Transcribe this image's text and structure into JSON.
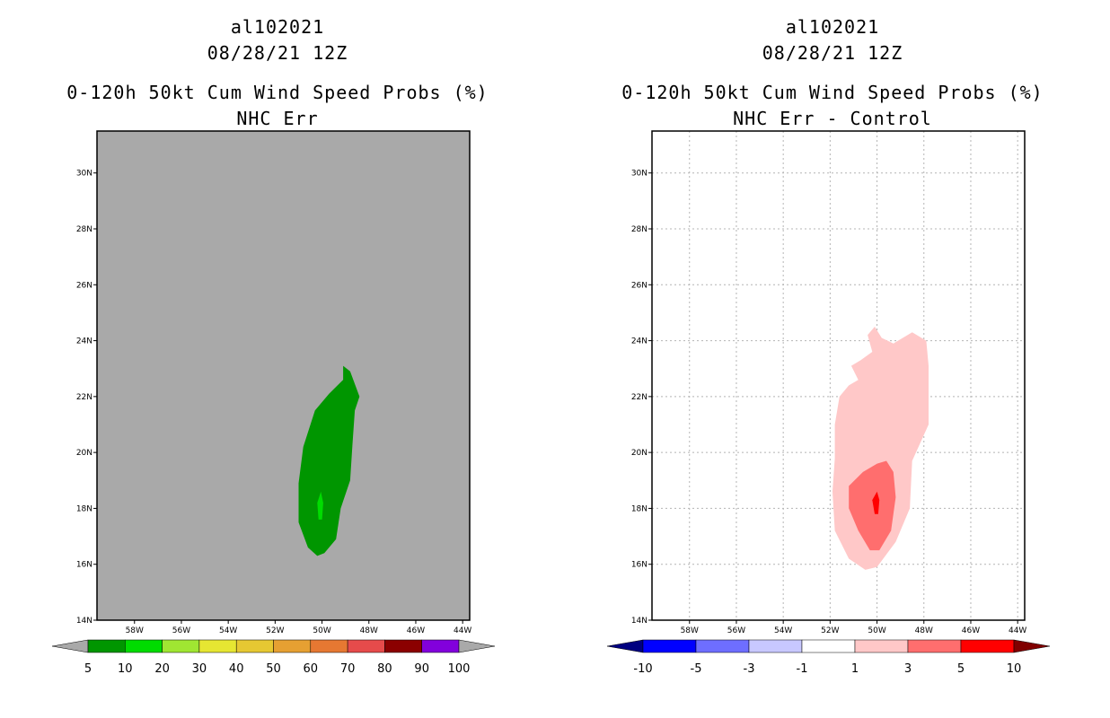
{
  "left": {
    "title_line1": "al102021",
    "title_line2": "08/28/21 12Z",
    "title_line3": "0-120h 50kt Cum Wind Speed Probs (%)",
    "title_line4": "NHC Err",
    "background_color": "#a9a9a9",
    "colorbar": {
      "colors": [
        "#009600",
        "#00dc00",
        "#a0e632",
        "#e6e632",
        "#e6c832",
        "#e6a032",
        "#e67832",
        "#e64b4b",
        "#8b0000",
        "#8200dc"
      ],
      "labels": [
        "5",
        "10",
        "20",
        "30",
        "40",
        "50",
        "60",
        "70",
        "80",
        "90",
        "100"
      ],
      "under_color": "#a9a9a9",
      "over_color": "#a9a9a9"
    }
  },
  "right": {
    "title_line1": "al102021",
    "title_line2": "08/28/21 12Z",
    "title_line3": "0-120h 50kt Cum Wind Speed Probs (%)",
    "title_line4": "NHC Err - Control",
    "background_color": "#ffffff",
    "colorbar": {
      "colors": [
        "#0000ff",
        "#6e6eff",
        "#c8c8ff",
        "#ffffff",
        "#ffc8c8",
        "#ff6e6e",
        "#ff0000"
      ],
      "labels": [
        "-10",
        "-5",
        "-3",
        "-1",
        "1",
        "3",
        "5",
        "10"
      ],
      "under_color": "#000080",
      "over_color": "#800000"
    }
  },
  "chart_data": [
    {
      "type": "contour",
      "title": "0-120h 50kt Cum Wind Speed Probs (%) NHC Err",
      "x_ticks": [
        "58W",
        "56W",
        "54W",
        "52W",
        "50W",
        "48W",
        "46W",
        "44W"
      ],
      "y_ticks": [
        "14N",
        "16N",
        "18N",
        "20N",
        "22N",
        "24N",
        "26N",
        "28N",
        "30N"
      ],
      "x_range_deg_lon": [
        -59.6,
        -43.7
      ],
      "y_range_deg_lat": [
        14,
        31.5
      ],
      "grid": false,
      "regions": [
        {
          "level": "5-10",
          "color": "#009600",
          "lonlat": [
            [
              -49.1,
              23.1
            ],
            [
              -48.8,
              22.9
            ],
            [
              -48.4,
              22.0
            ],
            [
              -48.6,
              21.5
            ],
            [
              -48.7,
              20.3
            ],
            [
              -48.8,
              19.0
            ],
            [
              -49.2,
              18.0
            ],
            [
              -49.4,
              16.9
            ],
            [
              -49.9,
              16.4
            ],
            [
              -50.2,
              16.3
            ],
            [
              -50.6,
              16.6
            ],
            [
              -51.0,
              17.5
            ],
            [
              -51.0,
              18.9
            ],
            [
              -50.8,
              20.2
            ],
            [
              -50.3,
              21.5
            ],
            [
              -49.7,
              22.1
            ],
            [
              -49.1,
              22.6
            ]
          ]
        },
        {
          "level": "10-20",
          "color": "#00dc00",
          "lonlat": [
            [
              -50.05,
              18.6
            ],
            [
              -49.95,
              18.2
            ],
            [
              -50.0,
              17.6
            ],
            [
              -50.15,
              17.6
            ],
            [
              -50.2,
              18.2
            ]
          ]
        }
      ]
    },
    {
      "type": "contour",
      "title": "0-120h 50kt Cum Wind Speed Probs (%) NHC Err - Control",
      "x_ticks": [
        "58W",
        "56W",
        "54W",
        "52W",
        "50W",
        "48W",
        "46W",
        "44W"
      ],
      "y_ticks": [
        "14N",
        "16N",
        "18N",
        "20N",
        "22N",
        "24N",
        "26N",
        "28N",
        "30N"
      ],
      "x_range_deg_lon": [
        -59.6,
        -43.7
      ],
      "y_range_deg_lat": [
        14,
        31.5
      ],
      "grid": true,
      "regions": [
        {
          "level": "1-3",
          "color": "#ffc8c8",
          "lonlat": [
            [
              -50.1,
              24.5
            ],
            [
              -49.8,
              24.1
            ],
            [
              -49.3,
              23.9
            ],
            [
              -48.5,
              24.3
            ],
            [
              -47.9,
              24.0
            ],
            [
              -47.8,
              23.1
            ],
            [
              -47.8,
              21.0
            ],
            [
              -48.5,
              19.7
            ],
            [
              -48.6,
              18.0
            ],
            [
              -49.2,
              16.8
            ],
            [
              -50.0,
              15.9
            ],
            [
              -50.5,
              15.8
            ],
            [
              -51.2,
              16.2
            ],
            [
              -51.8,
              17.2
            ],
            [
              -51.9,
              18.6
            ],
            [
              -51.8,
              19.8
            ],
            [
              -51.8,
              21.0
            ],
            [
              -51.6,
              22.0
            ],
            [
              -51.2,
              22.4
            ],
            [
              -50.8,
              22.6
            ],
            [
              -51.1,
              23.1
            ],
            [
              -50.7,
              23.3
            ],
            [
              -50.2,
              23.6
            ],
            [
              -50.4,
              24.2
            ]
          ]
        },
        {
          "level": "3-5",
          "color": "#ff6e6e",
          "lonlat": [
            [
              -49.6,
              19.7
            ],
            [
              -49.3,
              19.3
            ],
            [
              -49.2,
              18.4
            ],
            [
              -49.4,
              17.2
            ],
            [
              -49.9,
              16.5
            ],
            [
              -50.3,
              16.5
            ],
            [
              -50.8,
              17.2
            ],
            [
              -51.2,
              18.0
            ],
            [
              -51.2,
              18.8
            ],
            [
              -50.6,
              19.3
            ],
            [
              -50.0,
              19.6
            ]
          ]
        },
        {
          "level": "5-10",
          "color": "#ff0000",
          "lonlat": [
            [
              -50.0,
              18.6
            ],
            [
              -49.9,
              18.3
            ],
            [
              -49.95,
              17.8
            ],
            [
              -50.1,
              17.8
            ],
            [
              -50.2,
              18.3
            ]
          ]
        }
      ]
    }
  ]
}
